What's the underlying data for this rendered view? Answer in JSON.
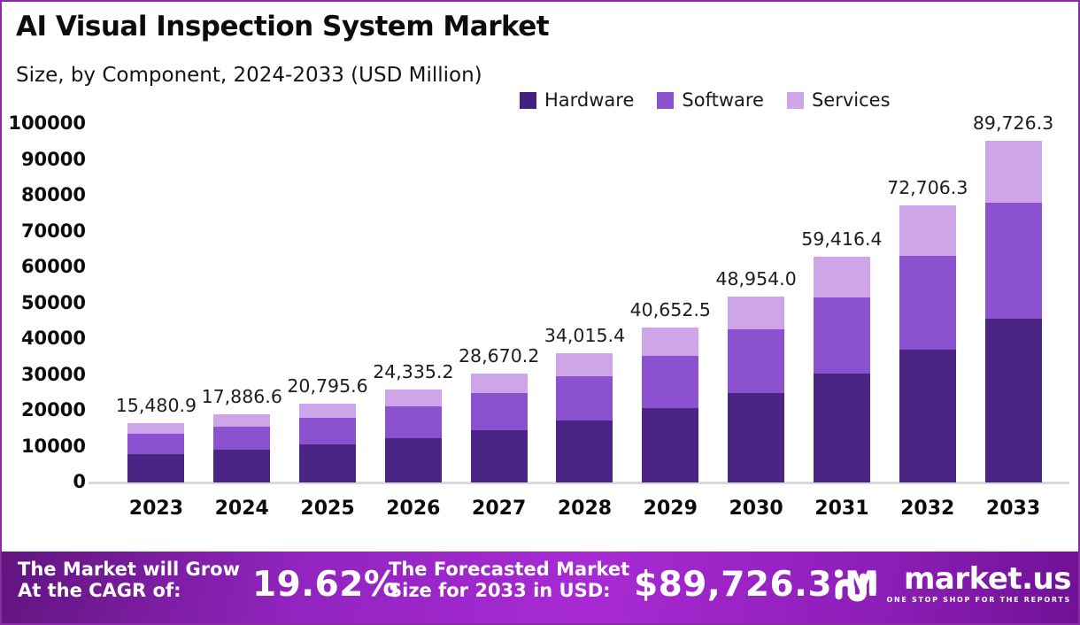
{
  "header": {
    "title": "AI Visual Inspection System Market",
    "subtitle": "Size, by Component, 2024-2033 (USD Million)"
  },
  "legend": [
    {
      "label": "Hardware",
      "color": "#44217f"
    },
    {
      "label": "Software",
      "color": "#8c51ce"
    },
    {
      "label": "Services",
      "color": "#cea5e9"
    }
  ],
  "chart_data": {
    "type": "bar",
    "stacked": true,
    "title": "AI Visual Inspection System Market",
    "subtitle": "Size, by Component, 2024-2033 (USD Million)",
    "categories": [
      "2023",
      "2024",
      "2025",
      "2026",
      "2027",
      "2028",
      "2029",
      "2030",
      "2031",
      "2032",
      "2033"
    ],
    "totals": [
      15480.9,
      17886.6,
      20795.6,
      24335.2,
      28670.2,
      34015.4,
      40652.5,
      48954.0,
      59416.4,
      72706.3,
      89726.3
    ],
    "total_labels": [
      "15,480.9",
      "17,886.6",
      "20,795.6",
      "24,335.2",
      "28,670.2",
      "34,015.4",
      "40,652.5",
      "48,954.0",
      "59,416.4",
      "72,706.3",
      "89,726.3"
    ],
    "series": [
      {
        "name": "Hardware",
        "color": "#4b2584",
        "values": [
          7430.8,
          8585.6,
          9981.9,
          11680.9,
          13761.7,
          16327.4,
          19513.2,
          23497.9,
          28519.9,
          34899.0,
          43068.6
        ]
      },
      {
        "name": "Software",
        "color": "#8c51ce",
        "values": [
          5263.5,
          6081.4,
          7070.5,
          8274.0,
          9747.9,
          11565.2,
          13821.9,
          16644.4,
          20201.6,
          24720.1,
          30507.0
        ]
      },
      {
        "name": "Services",
        "color": "#cea5e9",
        "values": [
          2786.6,
          3219.6,
          3743.2,
          4380.3,
          5160.6,
          6122.8,
          7317.5,
          8811.7,
          10695.0,
          13087.1,
          16150.7
        ]
      }
    ],
    "xlabel": "",
    "ylabel": "",
    "ylim": [
      0,
      100000
    ],
    "yticks": [
      0,
      10000,
      20000,
      30000,
      40000,
      50000,
      60000,
      70000,
      80000,
      90000,
      100000
    ],
    "grid": false,
    "legend_position": "top-right"
  },
  "footer": {
    "cagr_label_line1": "The Market will Grow",
    "cagr_label_line2": "At the CAGR of:",
    "cagr_value": "19.62%",
    "forecast_label_line1": "The Forecasted Market",
    "forecast_label_line2": "Size for 2033 in USD:",
    "forecast_value": "$89,726.3 M",
    "brand_name": "market.us",
    "brand_tagline": "ONE STOP SHOP FOR THE REPORTS"
  },
  "colors": {
    "hardware": "#4b2584",
    "software": "#8c51ce",
    "services": "#cea5e9",
    "border": "#8c2ba8",
    "axis_line": "#d9d9d9",
    "banner_left": "#61157e",
    "banner_center": "#a82ad4",
    "banner_right": "#6f1195",
    "text": "#0c0c0c",
    "banner_text": "#ffffff"
  }
}
